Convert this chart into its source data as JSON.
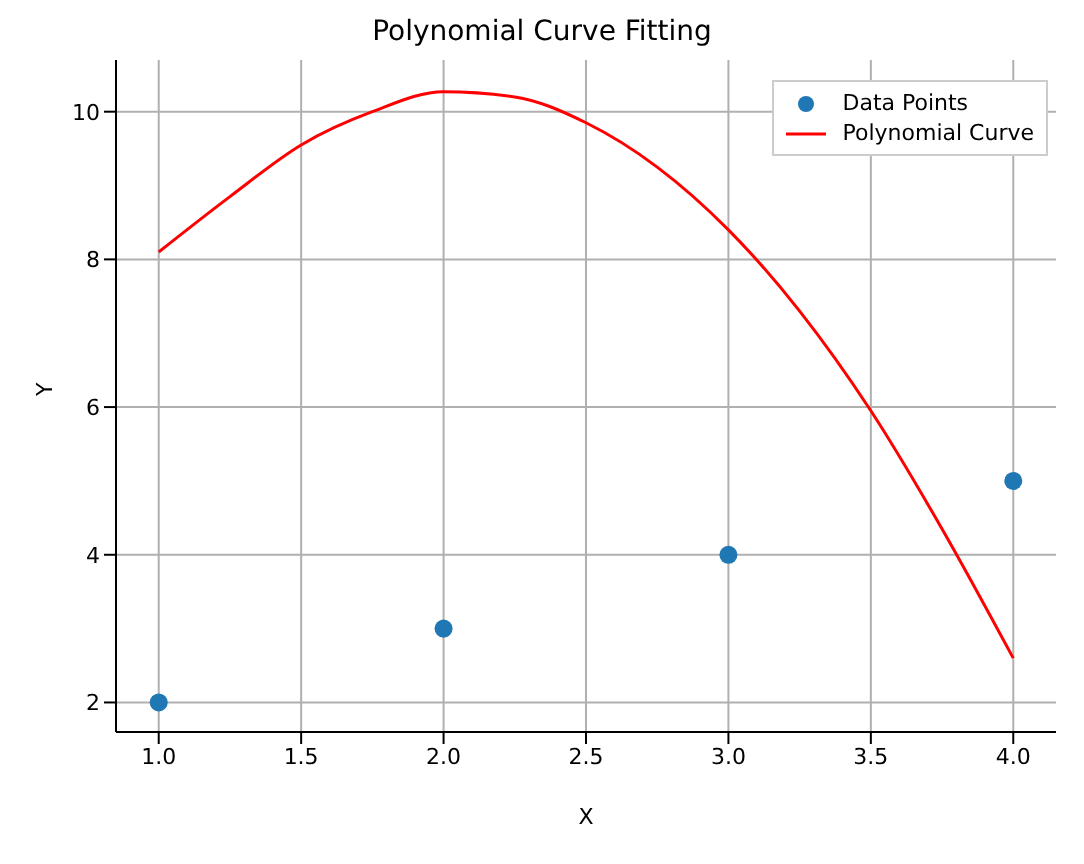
{
  "chart_data": {
    "type": "scatter",
    "title": "Polynomial Curve Fitting",
    "xlabel": "X",
    "ylabel": "Y",
    "xlim": [
      0.85,
      4.15
    ],
    "xticks": [
      {
        "value": 1,
        "label": "1.0"
      },
      {
        "value": 1.5,
        "label": "1.5"
      },
      {
        "value": 2,
        "label": "2.0"
      },
      {
        "value": 2.5,
        "label": "2.5"
      },
      {
        "value": 3,
        "label": "3.0"
      },
      {
        "value": 3.5,
        "label": "3.5"
      },
      {
        "value": 4,
        "label": "4.0"
      }
    ],
    "ylim": [
      1.6,
      10.7
    ],
    "yticks": [
      2,
      4,
      6,
      8,
      10
    ],
    "grid": true,
    "legend": "top right",
    "series": [
      {
        "name": "Data Points",
        "color": "#1f77b4",
        "marker": "circle",
        "x": [
          1,
          2,
          3,
          4
        ],
        "values": [
          2,
          3,
          4,
          5
        ]
      },
      {
        "name": "Polynomial Curve",
        "type": "line",
        "color": "#ff0000",
        "marker": "none",
        "line_style": "solid",
        "x": [
          1,
          1.25,
          1.5,
          1.75,
          2,
          2.25,
          2.5,
          2.75,
          3,
          3.25,
          3.5,
          3.75,
          4
        ],
        "values": [
          8.1,
          8.85,
          9.55,
          10.0,
          10.27,
          10.2,
          9.85,
          9.25,
          8.4,
          7.3,
          5.95,
          4.35,
          2.6
        ]
      }
    ]
  }
}
